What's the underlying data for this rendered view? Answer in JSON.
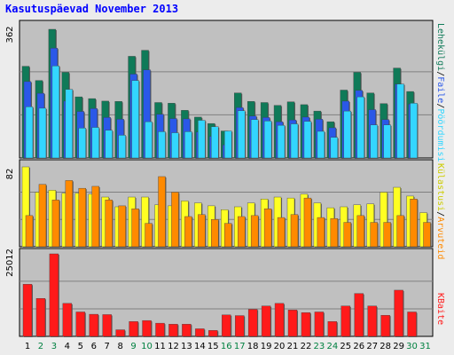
{
  "title": "Kasutuspäevad November 2013",
  "colors": {
    "background": "#ececec",
    "panel": "#c0c0c0",
    "title": "#0000ff",
    "pages": "#0f7a58",
    "files": "#2a58e8",
    "hits": "#33d6ff",
    "visits": "#ffff22",
    "sites": "#ff8a00",
    "kbytes": "#ff1a1a",
    "weekend_day": "#008040",
    "weekday": "#000000"
  },
  "legend": {
    "top": {
      "hits": "Pöördumisi",
      "sep1": "/",
      "files": "Faile",
      "sep2": "/",
      "pages": "Lehekülgi"
    },
    "middle": {
      "visits": "Külastusi",
      "sep": "/",
      "sites": "Arvuteid"
    },
    "bottom": {
      "kbytes": "KBaite"
    }
  },
  "chart_data": {
    "type": "bar",
    "title": "Kasutuspäevad November 2013",
    "days": [
      "1",
      "2",
      "3",
      "4",
      "5",
      "6",
      "7",
      "8",
      "9",
      "10",
      "11",
      "12",
      "13",
      "14",
      "15",
      "16",
      "17",
      "18",
      "19",
      "20",
      "21",
      "22",
      "23",
      "24",
      "25",
      "26",
      "27",
      "28",
      "29",
      "30",
      "31"
    ],
    "weekend_days": [
      "2",
      "3",
      "9",
      "10",
      "16",
      "17",
      "23",
      "24",
      "30",
      "31"
    ],
    "panels": [
      {
        "name": "requests",
        "ymax_label": "362",
        "ylim": [
          0,
          362
        ],
        "series": [
          {
            "name": "Lehekülgi",
            "color_key": "pages",
            "values": [
              258,
              218,
              362,
              241,
              172,
              167,
              160,
              159,
              286,
              303,
              156,
              154,
              134,
              115,
              97,
              76,
              183,
              159,
              156,
              148,
              158,
              150,
              132,
              102,
              191,
              241,
              183,
              153,
              253,
              187,
              0
            ]
          },
          {
            "name": "Faile",
            "color_key": "files",
            "values": [
              215,
              182,
              309,
              160,
              131,
              139,
              114,
              109,
              236,
              248,
              123,
              111,
              110,
              73,
              61,
              37,
              142,
              118,
              114,
              102,
              107,
              115,
              109,
              85,
              160,
              190,
              136,
              108,
              208,
              152,
              0
            ]
          },
          {
            "name": "Pöördumisi",
            "color_key": "hits",
            "values": [
              144,
              140,
              259,
              193,
              84,
              86,
              78,
              64,
              218,
              102,
              74,
              71,
              74,
              106,
              88,
              76,
              133,
              108,
              104,
              92,
              96,
              103,
              75,
              58,
              132,
              172,
              93,
              93,
              208,
              154,
              0
            ]
          }
        ]
      },
      {
        "name": "visits",
        "ymax_label": "82",
        "ylim": [
          0,
          82
        ],
        "series": [
          {
            "name": "Külastusi",
            "color_key": "visits",
            "values": [
              82,
              56,
              58,
              55,
              55,
              54,
              51,
              41,
              51,
              51,
              43,
              42,
              47,
              45,
              42,
              38,
              41,
              45,
              49,
              51,
              50,
              54,
              45,
              40,
              41,
              43,
              44,
              56,
              61,
              52,
              35
            ]
          },
          {
            "name": "Arvuteid",
            "color_key": "sites",
            "values": [
              32,
              64,
              48,
              68,
              60,
              62,
              48,
              42,
              39,
              24,
              72,
              56,
              31,
              33,
              28,
              24,
              31,
              32,
              39,
              30,
              33,
              50,
              30,
              29,
              25,
              32,
              25,
              25,
              32,
              49,
              25
            ]
          }
        ]
      },
      {
        "name": "bytes",
        "ymax_label": "25012",
        "ylim": [
          0,
          25012
        ],
        "series": [
          {
            "name": "KBaite",
            "color_key": "kbytes",
            "values": [
              15800,
              11500,
              25012,
              10000,
              7400,
              6700,
              6600,
              2000,
              4500,
              4800,
              4000,
              3700,
              3700,
              2300,
              1800,
              6500,
              6300,
              8200,
              9200,
              10000,
              8000,
              7200,
              7400,
              4500,
              9200,
              13000,
              9200,
              6400,
              14000,
              7400,
              0
            ]
          }
        ]
      }
    ]
  }
}
